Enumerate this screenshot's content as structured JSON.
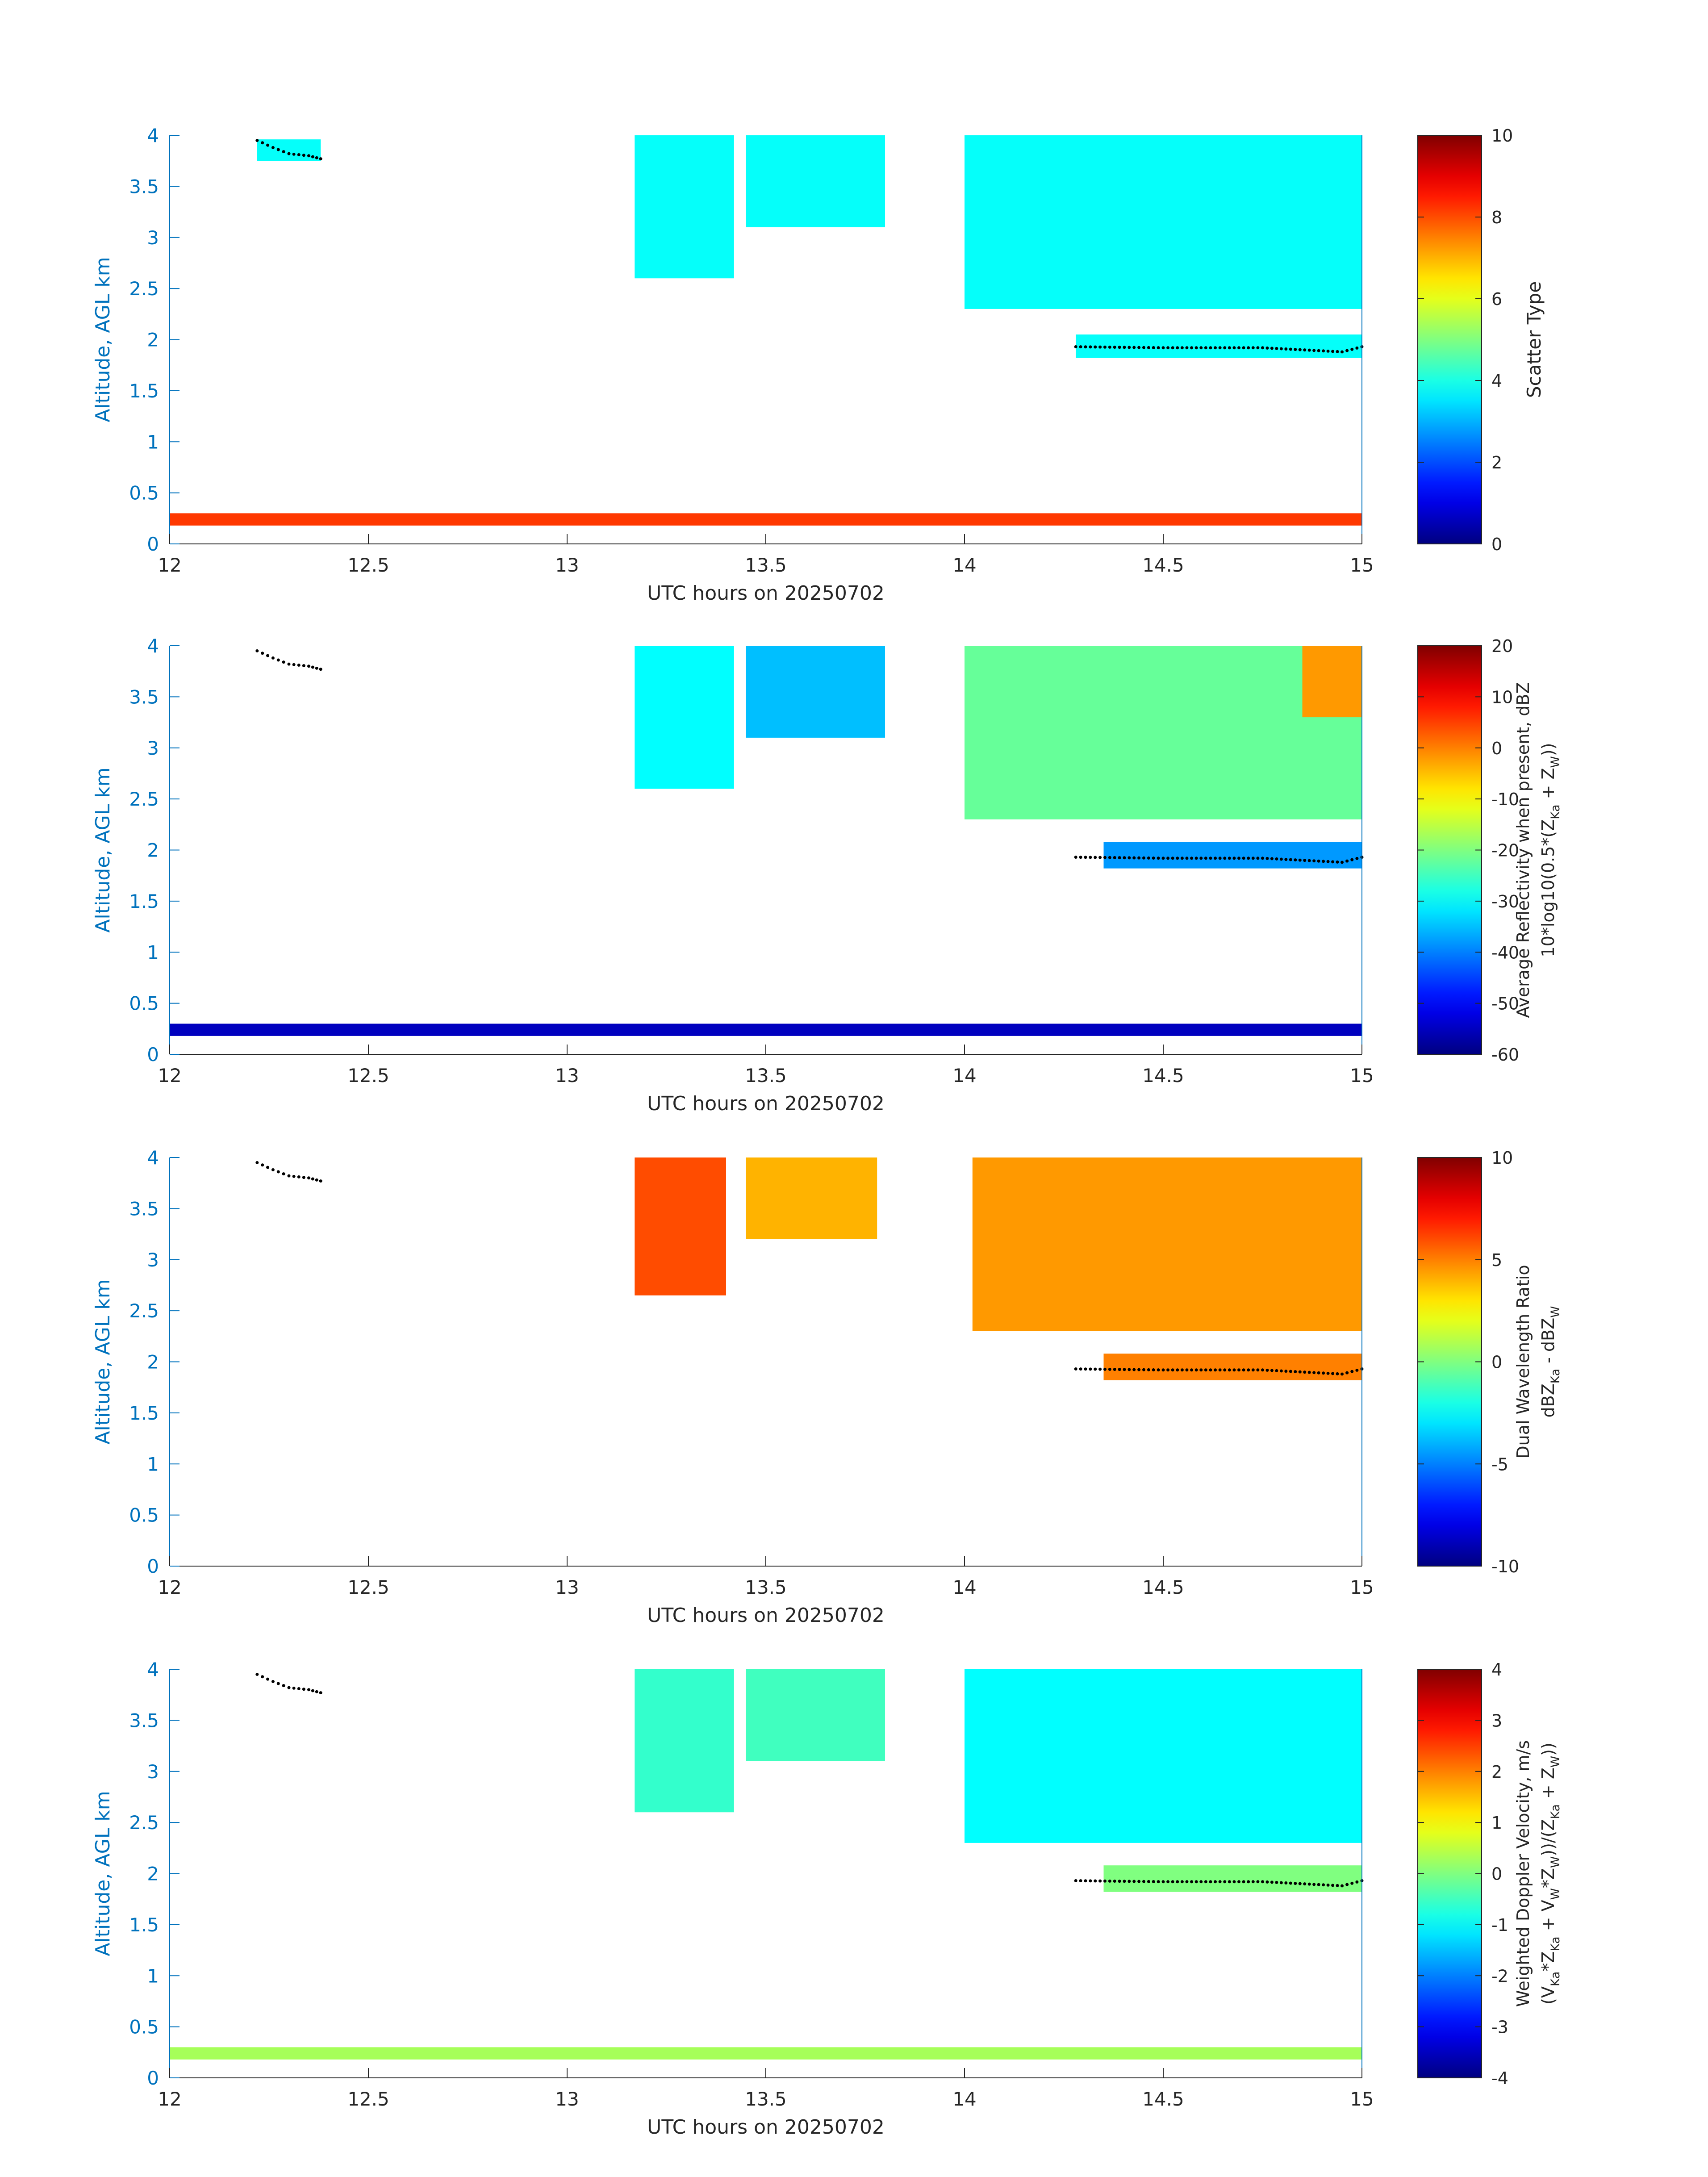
{
  "chart_data": [
    {
      "type": "heatmap",
      "panel_id": "scatter-type",
      "xlabel": "UTC hours on 20250702",
      "ylabel": "Altitude, AGL km",
      "xlim": [
        12,
        15
      ],
      "ylim": [
        0,
        4
      ],
      "xticks": [
        "12",
        "12.5",
        "13",
        "13.5",
        "14",
        "14.5",
        "15"
      ],
      "yticks": [
        "0",
        "0.5",
        "1",
        "1.5",
        "2",
        "2.5",
        "3",
        "3.5",
        "4"
      ],
      "colorbar": {
        "label_lines": [
          "Scatter Type"
        ],
        "clim": [
          0,
          10
        ],
        "ticks": [
          "0",
          "2",
          "4",
          "6",
          "8",
          "10"
        ]
      },
      "regions": [
        {
          "x0": 12.22,
          "x1": 12.38,
          "y0": 3.75,
          "y1": 3.96,
          "value": 3.8
        },
        {
          "x0": 13.17,
          "x1": 13.42,
          "y0": 2.6,
          "y1": 4.0,
          "value": 3.8
        },
        {
          "x0": 13.45,
          "x1": 13.8,
          "y0": 3.1,
          "y1": 4.0,
          "value": 3.8
        },
        {
          "x0": 14.0,
          "x1": 15.0,
          "y0": 2.3,
          "y1": 4.0,
          "value": 3.8
        },
        {
          "x0": 14.28,
          "x1": 15.0,
          "y0": 1.82,
          "y1": 2.05,
          "value": 3.8
        },
        {
          "x0": 12.0,
          "x1": 15.0,
          "y0": 0.18,
          "y1": 0.3,
          "value": 8.2
        }
      ],
      "marker_track": [
        {
          "x": 12.22,
          "y": 3.95
        },
        {
          "x": 12.26,
          "y": 3.88
        },
        {
          "x": 12.3,
          "y": 3.82
        },
        {
          "x": 12.35,
          "y": 3.8
        },
        {
          "x": 12.38,
          "y": 3.77
        },
        {
          "x": 14.28,
          "y": 1.93
        },
        {
          "x": 14.5,
          "y": 1.92
        },
        {
          "x": 14.75,
          "y": 1.92
        },
        {
          "x": 14.95,
          "y": 1.88
        },
        {
          "x": 15.0,
          "y": 1.93
        }
      ]
    },
    {
      "type": "heatmap",
      "panel_id": "reflectivity",
      "xlabel": "UTC hours on 20250702",
      "ylabel": "Altitude, AGL km",
      "xlim": [
        12,
        15
      ],
      "ylim": [
        0,
        4
      ],
      "xticks": [
        "12",
        "12.5",
        "13",
        "13.5",
        "14",
        "14.5",
        "15"
      ],
      "yticks": [
        "0",
        "0.5",
        "1",
        "1.5",
        "2",
        "2.5",
        "3",
        "3.5",
        "4"
      ],
      "colorbar": {
        "label_lines": [
          "Average Reflectivity when present, dBZ",
          "10*log10(0.5*(Z_Ka + Z_W))"
        ],
        "clim": [
          -60,
          20
        ],
        "ticks": [
          "-60",
          "-50",
          "-40",
          "-30",
          "-20",
          "-10",
          "0",
          "10",
          "20"
        ]
      },
      "regions": [
        {
          "x0": 13.17,
          "x1": 13.42,
          "y0": 2.6,
          "y1": 4.0,
          "value": -30
        },
        {
          "x0": 13.45,
          "x1": 13.8,
          "y0": 3.1,
          "y1": 4.0,
          "value": -35
        },
        {
          "x0": 14.0,
          "x1": 15.0,
          "y0": 2.3,
          "y1": 4.0,
          "value": -22
        },
        {
          "x0": 14.85,
          "x1": 15.0,
          "y0": 3.3,
          "y1": 4.0,
          "value": -2
        },
        {
          "x0": 14.35,
          "x1": 15.0,
          "y0": 1.82,
          "y1": 2.08,
          "value": -38
        },
        {
          "x0": 12.0,
          "x1": 15.0,
          "y0": 0.18,
          "y1": 0.3,
          "value": -55
        }
      ],
      "marker_track": [
        {
          "x": 12.22,
          "y": 3.95
        },
        {
          "x": 12.26,
          "y": 3.88
        },
        {
          "x": 12.3,
          "y": 3.82
        },
        {
          "x": 12.35,
          "y": 3.8
        },
        {
          "x": 12.38,
          "y": 3.77
        },
        {
          "x": 14.28,
          "y": 1.93
        },
        {
          "x": 14.5,
          "y": 1.92
        },
        {
          "x": 14.75,
          "y": 1.92
        },
        {
          "x": 14.95,
          "y": 1.88
        },
        {
          "x": 15.0,
          "y": 1.93
        }
      ]
    },
    {
      "type": "heatmap",
      "panel_id": "dual-wavelength-ratio",
      "xlabel": "UTC hours on 20250702",
      "ylabel": "Altitude, AGL km",
      "xlim": [
        12,
        15
      ],
      "ylim": [
        0,
        4
      ],
      "xticks": [
        "12",
        "12.5",
        "13",
        "13.5",
        "14",
        "14.5",
        "15"
      ],
      "yticks": [
        "0",
        "0.5",
        "1",
        "1.5",
        "2",
        "2.5",
        "3",
        "3.5",
        "4"
      ],
      "colorbar": {
        "label_lines": [
          "Dual Wavelength Ratio",
          "dBZ_Ka - dBZ_W"
        ],
        "clim": [
          -10,
          10
        ],
        "ticks": [
          "-10",
          "-5",
          "0",
          "5",
          "10"
        ]
      },
      "regions": [
        {
          "x0": 13.17,
          "x1": 13.4,
          "y0": 2.65,
          "y1": 4.0,
          "value": 6
        },
        {
          "x0": 13.45,
          "x1": 13.78,
          "y0": 3.2,
          "y1": 4.0,
          "value": 4
        },
        {
          "x0": 14.02,
          "x1": 15.0,
          "y0": 2.3,
          "y1": 4.0,
          "value": 4.5
        },
        {
          "x0": 14.35,
          "x1": 15.0,
          "y0": 1.82,
          "y1": 2.08,
          "value": 5
        }
      ],
      "marker_track": [
        {
          "x": 12.22,
          "y": 3.95
        },
        {
          "x": 12.26,
          "y": 3.88
        },
        {
          "x": 12.3,
          "y": 3.82
        },
        {
          "x": 12.35,
          "y": 3.8
        },
        {
          "x": 12.38,
          "y": 3.77
        },
        {
          "x": 14.28,
          "y": 1.93
        },
        {
          "x": 14.5,
          "y": 1.92
        },
        {
          "x": 14.75,
          "y": 1.92
        },
        {
          "x": 14.95,
          "y": 1.88
        },
        {
          "x": 15.0,
          "y": 1.93
        }
      ]
    },
    {
      "type": "heatmap",
      "panel_id": "doppler-velocity",
      "xlabel": "UTC hours on 20250702",
      "ylabel": "Altitude, AGL km",
      "xlim": [
        12,
        15
      ],
      "ylim": [
        0,
        4
      ],
      "xticks": [
        "12",
        "12.5",
        "13",
        "13.5",
        "14",
        "14.5",
        "15"
      ],
      "yticks": [
        "0",
        "0.5",
        "1",
        "1.5",
        "2",
        "2.5",
        "3",
        "3.5",
        "4"
      ],
      "colorbar": {
        "label_lines": [
          "Weighted Doppler Velocity, m/s",
          "(V_Ka*Z_Ka + V_W*Z_W))/(Z_Ka + Z_W))"
        ],
        "clim": [
          -4,
          4
        ],
        "ticks": [
          "-4",
          "-3",
          "-2",
          "-1",
          "0",
          "1",
          "2",
          "3",
          "4"
        ]
      },
      "regions": [
        {
          "x0": 13.17,
          "x1": 13.42,
          "y0": 2.6,
          "y1": 4.0,
          "value": -0.6
        },
        {
          "x0": 13.45,
          "x1": 13.8,
          "y0": 3.1,
          "y1": 4.0,
          "value": -0.5
        },
        {
          "x0": 14.0,
          "x1": 15.0,
          "y0": 2.3,
          "y1": 4.0,
          "value": -1.0
        },
        {
          "x0": 14.35,
          "x1": 15.0,
          "y0": 1.82,
          "y1": 2.08,
          "value": 0.0
        },
        {
          "x0": 12.0,
          "x1": 15.0,
          "y0": 0.18,
          "y1": 0.3,
          "value": 0.3
        }
      ],
      "marker_track": [
        {
          "x": 12.22,
          "y": 3.95
        },
        {
          "x": 12.26,
          "y": 3.88
        },
        {
          "x": 12.3,
          "y": 3.82
        },
        {
          "x": 12.35,
          "y": 3.8
        },
        {
          "x": 12.38,
          "y": 3.77
        },
        {
          "x": 14.28,
          "y": 1.93
        },
        {
          "x": 14.5,
          "y": 1.92
        },
        {
          "x": 14.75,
          "y": 1.92
        },
        {
          "x": 14.95,
          "y": 1.88
        },
        {
          "x": 15.0,
          "y": 1.93
        }
      ]
    }
  ]
}
